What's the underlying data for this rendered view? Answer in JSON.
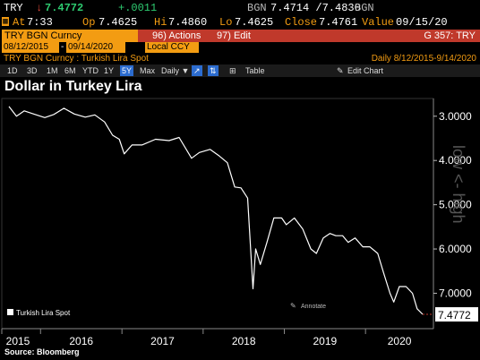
{
  "header": {
    "ticker": "TRY",
    "last": "7.4772",
    "change": "+.0011",
    "source_code": "BGN",
    "bid_ask": "7.4714 /7.4830",
    "source_code2": "BGN",
    "time_prefix": "At",
    "time": "7:33",
    "open_label": "Op",
    "open": "7.4625",
    "high_label": "Hi",
    "high": "7.4860",
    "low_label": "Lo",
    "low": "7.4625",
    "close_label": "Close",
    "close": "7.4761",
    "value_label": "Value",
    "value_date": "09/15/20"
  },
  "command_bar": {
    "security": "TRY BGN Curncy",
    "actions": "96) Actions",
    "edit": "97) Edit",
    "page": "G 357: TRY"
  },
  "controls": {
    "start_date": "08/12/2015",
    "end_date": "09/14/2020",
    "currency": "Local CCY",
    "description": "TRY BGN Curncy : Turkish Lira Spot",
    "periodicity_range": "Daily   8/12/2015-9/14/2020"
  },
  "toolbar": {
    "timeframes": [
      "1D",
      "3D",
      "1M",
      "6M",
      "YTD",
      "1Y",
      "5Y",
      "Max"
    ],
    "selected": "5Y",
    "periodicity": "Daily ▼",
    "table": "Table",
    "edit_chart": "Edit Chart"
  },
  "colors": {
    "accent": "#f39c12",
    "alert": "#c0392b",
    "selected": "#2c6ccf"
  },
  "chart_data": {
    "type": "line",
    "title": "Dollar in Turkey Lira",
    "source": "Source:  Bloomberg",
    "y_axis_label": "low <- high",
    "y_inverted": true,
    "ylim": [
      2.6,
      7.8
    ],
    "y_ticks": [
      "3.0000",
      "4.0000",
      "5.0000",
      "6.0000",
      "7.0000"
    ],
    "y_tick_values": [
      3,
      4,
      5,
      6,
      7
    ],
    "x_ticks": [
      "2015",
      "2016",
      "2017",
      "2018",
      "2019",
      "2020"
    ],
    "x_tick_dates": [
      "2015-01-01",
      "2016-01-01",
      "2017-01-01",
      "2018-01-01",
      "2019-01-01",
      "2020-01-01"
    ],
    "xlim": [
      "2015-08-12",
      "2020-09-14"
    ],
    "legend": "Turkish Lira Spot",
    "legend_position": "bottom-left",
    "annotate_label": "Annotate",
    "last_value_label": "7.4772",
    "series": [
      {
        "name": "Turkish Lira Spot",
        "color": "#ffffff",
        "x": [
          "2015-08-12",
          "2015-09-15",
          "2015-10-20",
          "2015-12-01",
          "2016-01-20",
          "2016-03-01",
          "2016-04-15",
          "2016-06-01",
          "2016-07-20",
          "2016-09-01",
          "2016-10-15",
          "2016-11-20",
          "2016-12-20",
          "2017-01-11",
          "2017-02-15",
          "2017-04-01",
          "2017-06-01",
          "2017-08-01",
          "2017-09-15",
          "2017-11-10",
          "2017-12-15",
          "2018-02-01",
          "2018-03-15",
          "2018-04-20",
          "2018-05-23",
          "2018-06-20",
          "2018-07-20",
          "2018-08-13",
          "2018-08-25",
          "2018-09-15",
          "2018-10-15",
          "2018-11-15",
          "2018-12-20",
          "2019-01-10",
          "2019-02-15",
          "2019-03-25",
          "2019-04-30",
          "2019-05-25",
          "2019-06-25",
          "2019-07-25",
          "2019-08-20",
          "2019-09-20",
          "2019-10-15",
          "2019-11-15",
          "2019-12-20",
          "2020-01-20",
          "2020-02-25",
          "2020-03-23",
          "2020-04-20",
          "2020-05-07",
          "2020-06-01",
          "2020-07-01",
          "2020-07-30",
          "2020-08-20",
          "2020-09-14"
        ],
        "values": [
          2.78,
          3.0,
          2.88,
          2.95,
          3.03,
          2.96,
          2.82,
          2.95,
          3.02,
          2.97,
          3.13,
          3.43,
          3.52,
          3.85,
          3.65,
          3.65,
          3.52,
          3.55,
          3.48,
          3.95,
          3.82,
          3.75,
          3.9,
          4.05,
          4.6,
          4.62,
          4.85,
          6.9,
          6.0,
          6.35,
          5.85,
          5.3,
          5.3,
          5.45,
          5.3,
          5.55,
          6.0,
          6.1,
          5.75,
          5.65,
          5.7,
          5.7,
          5.85,
          5.75,
          5.95,
          5.95,
          6.1,
          6.55,
          7.0,
          7.2,
          6.85,
          6.85,
          7.0,
          7.35,
          7.4772
        ]
      }
    ]
  }
}
